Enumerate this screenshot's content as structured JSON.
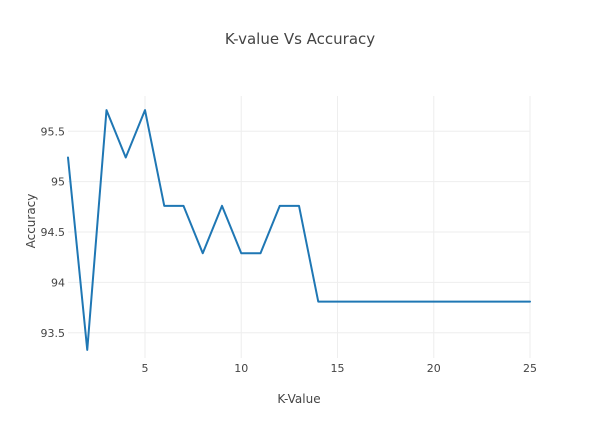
{
  "chart_data": {
    "type": "line",
    "title": "K-value Vs Accuracy",
    "xlabel": "K-Value",
    "ylabel": "Accuracy",
    "xlim": [
      1,
      25
    ],
    "ylim": [
      93.25,
      95.85
    ],
    "x_ticks": [
      5,
      10,
      15,
      20,
      25
    ],
    "y_ticks": [
      93.5,
      94,
      94.5,
      95,
      95.5
    ],
    "grid": true,
    "legend": "none",
    "series": [
      {
        "color": "#1f77b4",
        "x": [
          1,
          2,
          3,
          4,
          5,
          6,
          7,
          8,
          9,
          10,
          11,
          12,
          13,
          14,
          15,
          16,
          17,
          18,
          19,
          20,
          21,
          22,
          23,
          24,
          25
        ],
        "y": [
          95.24,
          93.33,
          95.71,
          95.24,
          95.71,
          94.76,
          94.76,
          94.29,
          94.76,
          94.29,
          94.29,
          94.76,
          94.76,
          93.81,
          93.81,
          93.81,
          93.81,
          93.81,
          93.81,
          93.81,
          93.81,
          93.81,
          93.81,
          93.81,
          93.81
        ]
      }
    ]
  }
}
